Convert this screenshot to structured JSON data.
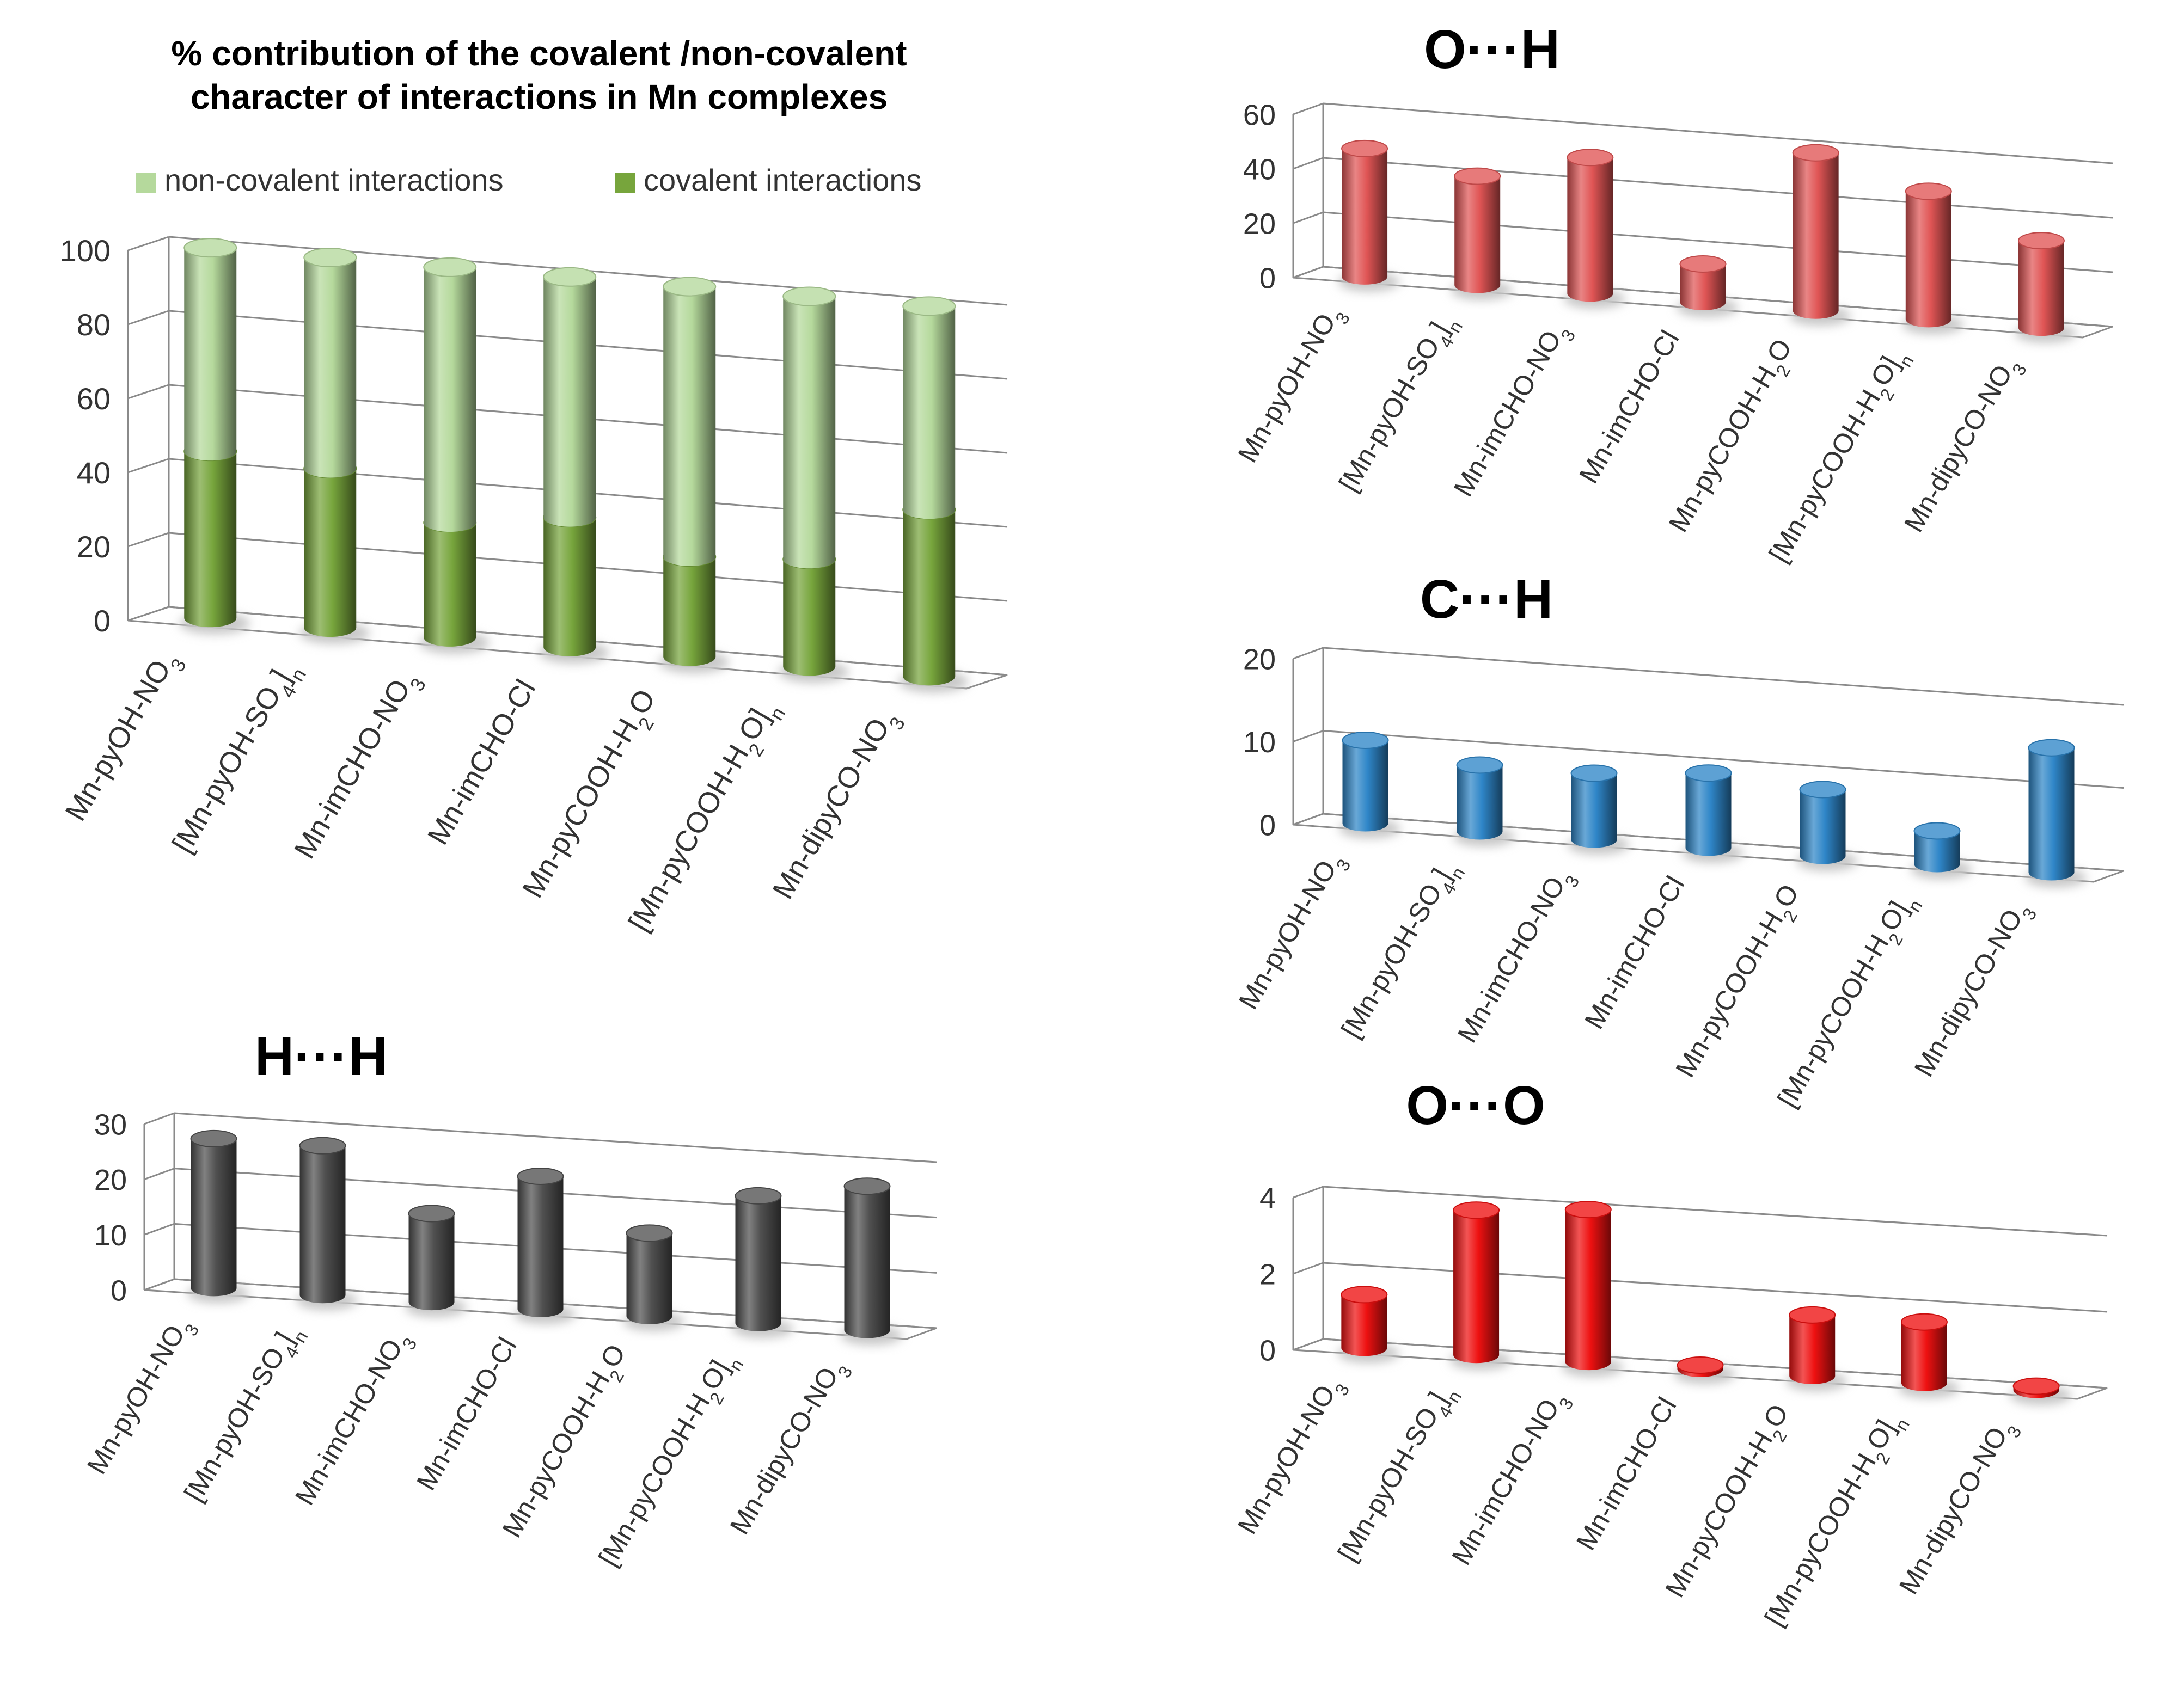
{
  "figure": {
    "categories": [
      [
        "Mn-pyOH-NO",
        {
          "sub": "3"
        }
      ],
      [
        "[Mn-pyOH-SO",
        {
          "sub": "4"
        },
        "]",
        {
          "sub": "n"
        }
      ],
      [
        "Mn-imCHO-NO",
        {
          "sub": "3"
        }
      ],
      [
        "Mn-imCHO-Cl"
      ],
      [
        "Mn-pyCOOH-H",
        {
          "sub": "2"
        },
        "O"
      ],
      [
        "[Mn-pyCOOH-H",
        {
          "sub": "2"
        },
        "O]",
        {
          "sub": "n"
        }
      ],
      [
        "Mn-dipyCO-NO",
        {
          "sub": "3"
        }
      ]
    ]
  },
  "chart_data": [
    {
      "id": "main",
      "type": "bar",
      "stacked": true,
      "title": [
        "% contribution of the covalent /non-covalent",
        "character of interactions in Mn complexes"
      ],
      "legend": [
        "non-covalent interactions",
        "covalent interactions"
      ],
      "series": [
        {
          "name": "covalent interactions",
          "values": [
            45,
            43,
            31,
            35,
            27,
            29,
            45
          ],
          "color": "#77a53c"
        },
        {
          "name": "non-covalent interactions",
          "values": [
            55,
            57,
            69,
            65,
            73,
            71,
            55
          ],
          "color": "#b5d99c"
        }
      ],
      "ylim": [
        0,
        100
      ],
      "yticks": [
        0,
        20,
        40,
        60,
        80,
        100
      ]
    },
    {
      "id": "OH",
      "type": "bar",
      "title": "O···H",
      "values": [
        47,
        40,
        50,
        14,
        58,
        47,
        32
      ],
      "color": "#e05555",
      "ylim": [
        0,
        60
      ],
      "yticks": [
        0,
        20,
        40,
        60
      ]
    },
    {
      "id": "CH",
      "type": "bar",
      "title": "C···H",
      "values": [
        10,
        8,
        8,
        9,
        8,
        4,
        15
      ],
      "color": "#2f86c8",
      "ylim": [
        0,
        20
      ],
      "yticks": [
        0,
        10,
        20
      ]
    },
    {
      "id": "HH",
      "type": "bar",
      "title": "H···H",
      "values": [
        27,
        27,
        16,
        24,
        15,
        23,
        26
      ],
      "color": "#505050",
      "ylim": [
        0,
        30
      ],
      "yticks": [
        0,
        10,
        20,
        30
      ]
    },
    {
      "id": "OO",
      "type": "bar",
      "title": "O···O",
      "values": [
        1.4,
        3.8,
        4.0,
        0.1,
        1.6,
        1.6,
        0.1
      ],
      "color": "#ee1111",
      "ylim": [
        0,
        4
      ],
      "yticks": [
        0,
        2,
        4
      ]
    }
  ]
}
